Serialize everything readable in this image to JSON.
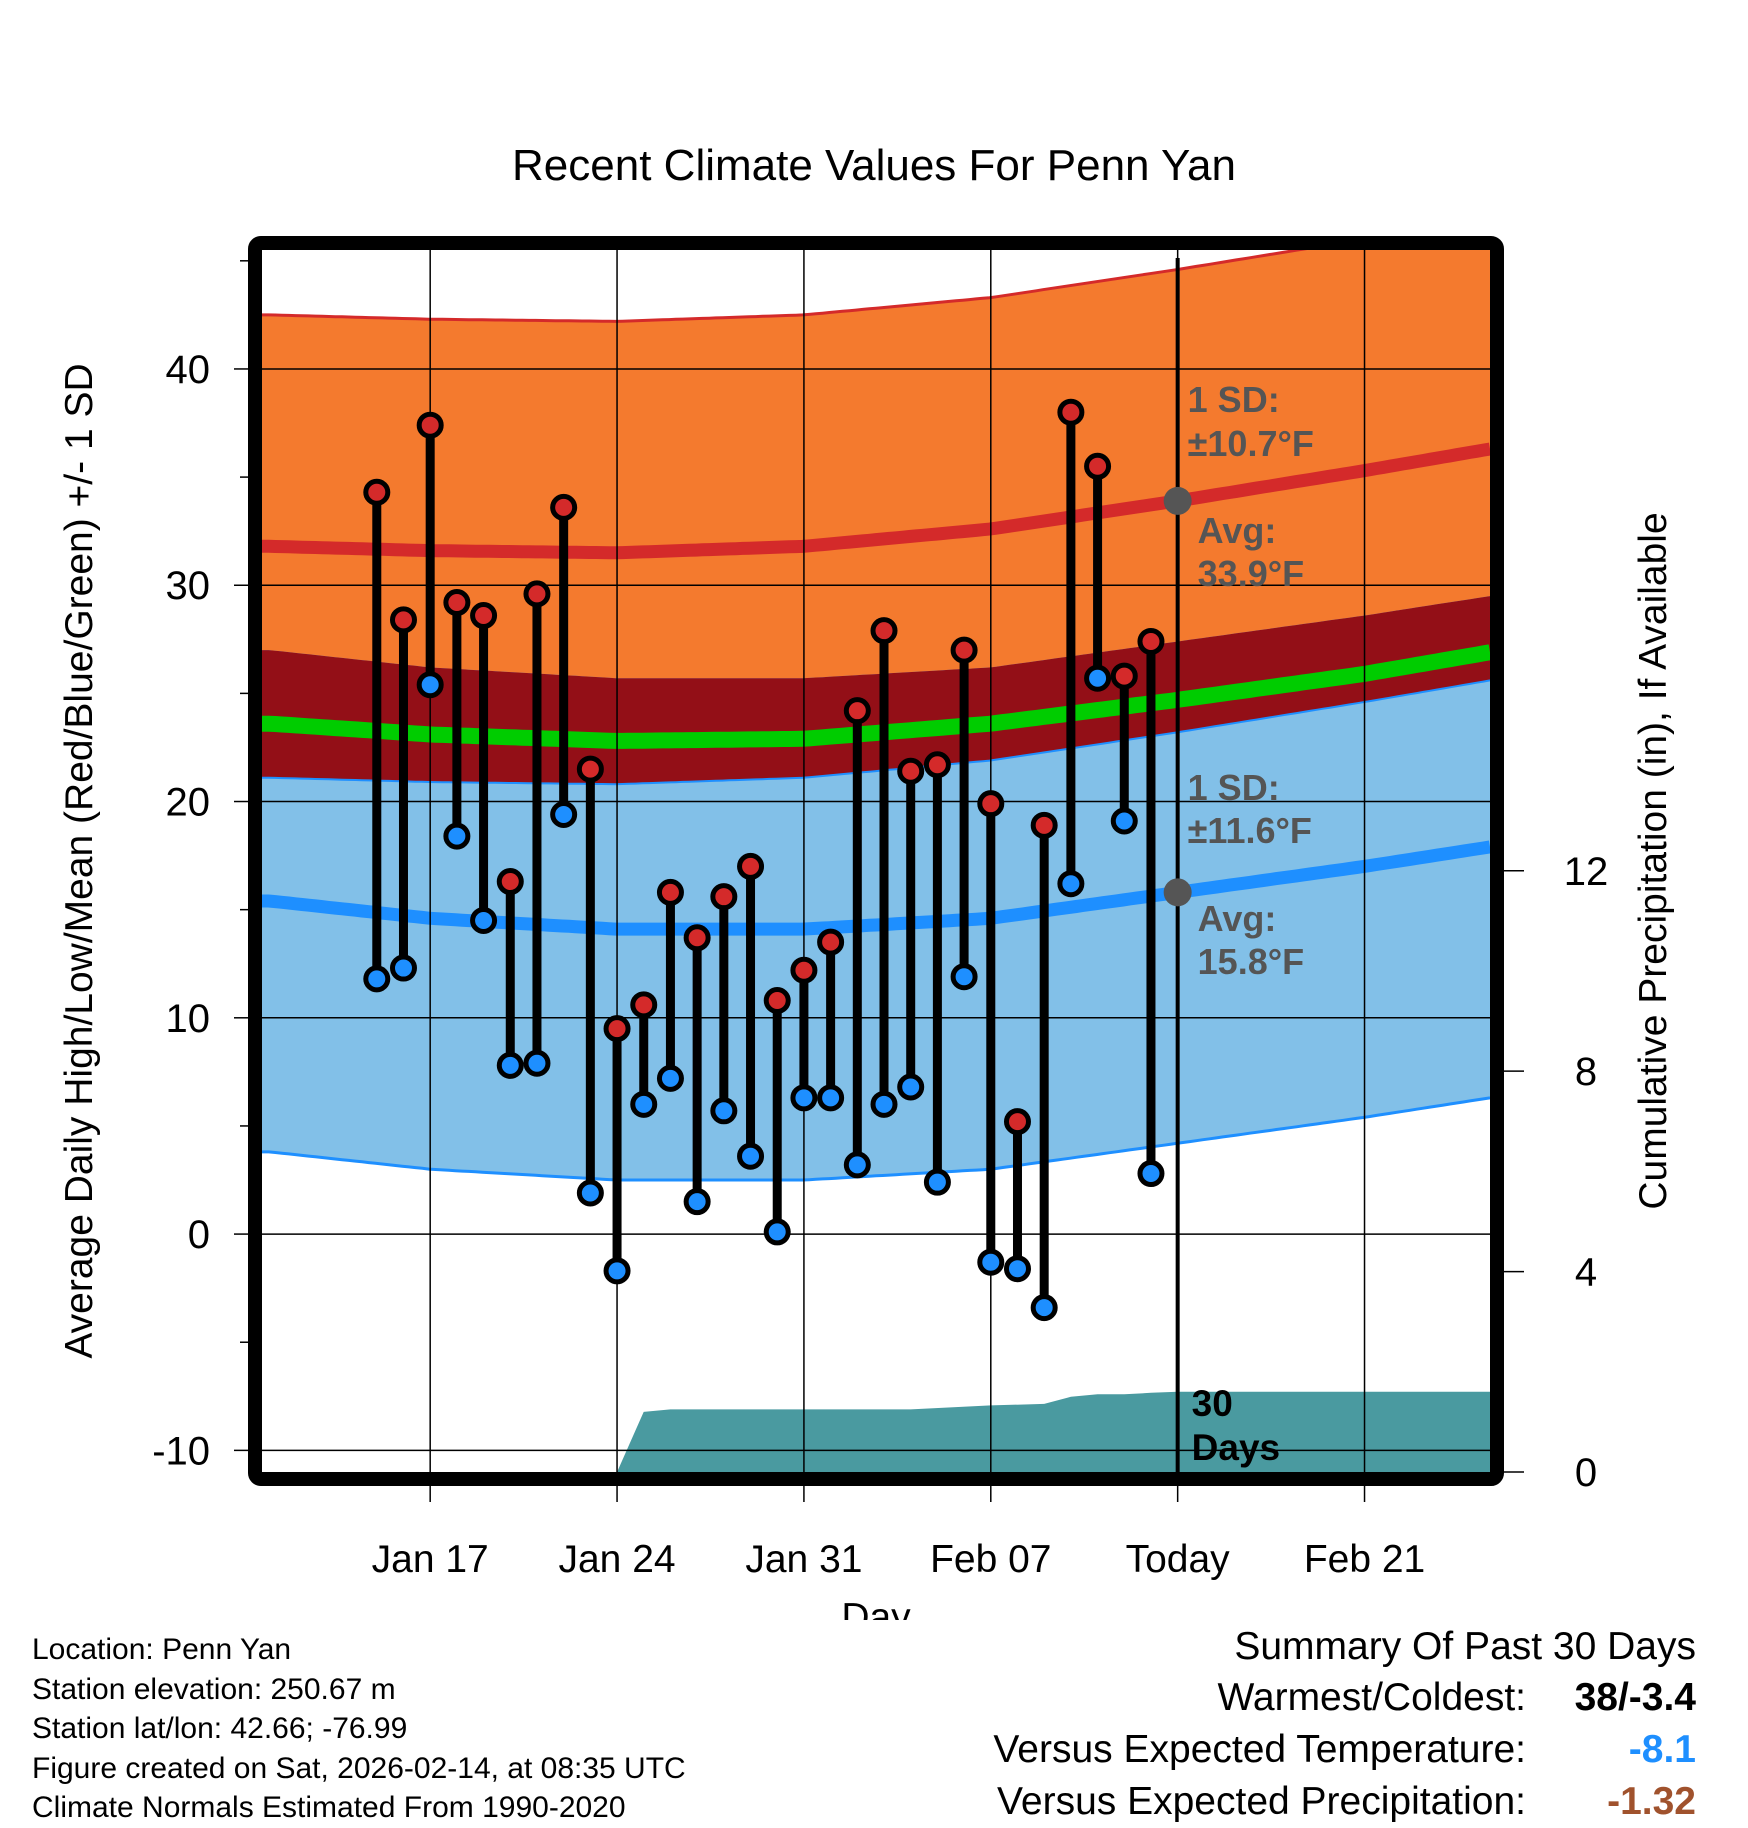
{
  "chart_data": {
    "type": "line",
    "title": "Recent Climate Values For Penn Yan",
    "xlabel": "Day",
    "ylabel": "Average Daily High/Low/Mean (Red/Blue/Green) +/- 1 SD",
    "y2label": "Cumulative Precipitation (in), If Available",
    "x_range_days": [
      -34.3,
      11.7
    ],
    "ylim": [
      -11,
      45.5
    ],
    "y2lim": [
      0,
      15
    ],
    "y_ticks": [
      -10,
      0,
      10,
      20,
      30,
      40
    ],
    "y2_ticks": [
      0,
      4,
      8,
      12
    ],
    "x_ticks": [
      {
        "day": -28,
        "label": "Jan 17"
      },
      {
        "day": -21,
        "label": "Jan 24"
      },
      {
        "day": -14,
        "label": "Jan 31"
      },
      {
        "day": -7,
        "label": "Feb 07"
      },
      {
        "day": 0,
        "label": "Today"
      },
      {
        "day": 7,
        "label": "Feb 21"
      }
    ],
    "today_marker_label": "30\nDays",
    "normals": {
      "day": [
        -34,
        -28,
        -21,
        -14,
        -7,
        0,
        7,
        11.7
      ],
      "high_avg": [
        31.8,
        31.6,
        31.5,
        31.8,
        32.6,
        33.9,
        35.3,
        36.3
      ],
      "high_sd": 10.7,
      "low_avg": [
        15.4,
        14.6,
        14.1,
        14.1,
        14.6,
        15.8,
        17.0,
        17.9
      ],
      "low_sd": 11.6,
      "mean_avg": [
        23.6,
        23.1,
        22.8,
        22.9,
        23.6,
        24.7,
        25.9,
        26.9
      ]
    },
    "annotations": {
      "high_sd_label": "1 SD:",
      "high_sd_value": "±10.7°F",
      "high_avg_label": "Avg:",
      "high_avg_value": "33.9°F",
      "low_sd_label": "1 SD:",
      "low_sd_value": "±11.6°F",
      "low_avg_label": "Avg:",
      "low_avg_value": "15.8°F"
    },
    "series": [
      {
        "name": "Daily High",
        "day": [
          -30,
          -29,
          -28,
          -27,
          -26,
          -25,
          -24,
          -23,
          -22,
          -21,
          -20,
          -19,
          -18,
          -17,
          -16,
          -15,
          -14,
          -13,
          -12,
          -11,
          -10,
          -9,
          -8,
          -7,
          -6,
          -5,
          -4,
          -3,
          -2,
          -1
        ],
        "values": [
          34.3,
          28.4,
          37.4,
          29.2,
          28.6,
          16.3,
          29.6,
          33.6,
          21.5,
          9.5,
          10.6,
          15.8,
          13.7,
          15.6,
          17.0,
          10.8,
          12.2,
          13.5,
          24.2,
          27.9,
          21.4,
          21.7,
          27.0,
          19.9,
          5.2,
          18.9,
          38.0,
          35.5,
          25.8,
          27.4
        ]
      },
      {
        "name": "Daily Low",
        "day": [
          -30,
          -29,
          -28,
          -27,
          -26,
          -25,
          -24,
          -23,
          -22,
          -21,
          -20,
          -19,
          -18,
          -17,
          -16,
          -15,
          -14,
          -13,
          -12,
          -11,
          -10,
          -9,
          -8,
          -7,
          -6,
          -5,
          -4,
          -3,
          -2,
          -1
        ],
        "values": [
          11.8,
          12.3,
          25.4,
          18.4,
          14.5,
          7.8,
          7.9,
          19.4,
          1.9,
          -1.7,
          6.0,
          7.2,
          1.5,
          5.7,
          3.6,
          0.1,
          6.3,
          6.3,
          3.2,
          6.0,
          6.8,
          2.4,
          11.9,
          -1.3,
          -1.6,
          -3.4,
          16.2,
          25.7,
          19.1,
          2.8
        ]
      },
      {
        "name": "Cumulative Precipitation",
        "day": [
          -21,
          -20,
          -19,
          -15,
          -10,
          -7,
          -5,
          -4,
          -3,
          -2,
          -1,
          0,
          11.7
        ],
        "values": [
          0,
          1.2,
          1.25,
          1.25,
          1.25,
          1.33,
          1.36,
          1.5,
          1.55,
          1.55,
          1.58,
          1.6,
          1.6
        ]
      }
    ],
    "colors": {
      "high_band": "#F47A2E",
      "high_line": "#D42A2A",
      "overlap_band": "#930F17",
      "low_band": "#82C0E8",
      "low_line": "#1E8FFF",
      "mean_line": "#00CC00",
      "precip": "#4A9AA0",
      "annotation": "#555555",
      "high_marker": "#D42A2A",
      "low_marker": "#1E8FFF"
    }
  },
  "footer": {
    "location": "Location: Penn Yan",
    "elevation": "Station elevation: 250.67 m",
    "latlon": "Station lat/lon: 42.66; -76.99",
    "created": "Figure created on Sat, 2026-02-14, at 08:35 UTC",
    "normals": "Climate Normals Estimated From 1990-2020"
  },
  "summary": {
    "title": "Summary Of Past 30 Days",
    "warmest_coldest_label": "Warmest/Coldest:",
    "warmest_coldest_value": "38/-3.4",
    "temp_label": "Versus Expected Temperature:",
    "temp_value": "-8.1",
    "precip_label": "Versus Expected Precipitation:",
    "precip_value": "-1.32",
    "temp_color": "#1E8FFF",
    "precip_color": "#A0522D"
  }
}
